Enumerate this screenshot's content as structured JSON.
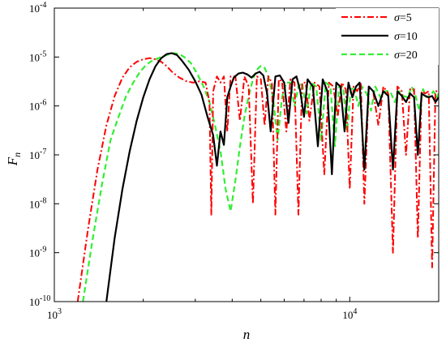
{
  "chart_data": {
    "type": "line",
    "xlabel": "n",
    "ylabel": "F",
    "ylabel_sub": "n",
    "x_scale": "log",
    "y_scale": "log",
    "xlim": [
      1000,
      20000
    ],
    "ylim": [
      1e-10,
      0.0001
    ],
    "x_ticks": [
      {
        "value": 1000,
        "base": "10",
        "exp": "3"
      },
      {
        "value": 10000,
        "base": "10",
        "exp": "4"
      }
    ],
    "y_ticks": [
      {
        "value": 1e-10,
        "base": "10",
        "exp": "-10"
      },
      {
        "value": 1e-09,
        "base": "10",
        "exp": "-9"
      },
      {
        "value": 1e-08,
        "base": "10",
        "exp": "-8"
      },
      {
        "value": 1e-07,
        "base": "10",
        "exp": "-7"
      },
      {
        "value": 1e-06,
        "base": "10",
        "exp": "-6"
      },
      {
        "value": 1e-05,
        "base": "10",
        "exp": "-5"
      },
      {
        "value": 0.0001,
        "base": "10",
        "exp": "-4"
      }
    ],
    "grid": false,
    "legend_position": "top-right",
    "series": [
      {
        "name_symbol": "σ",
        "name_value": "=5",
        "color": "#ff0000",
        "dash": "dashdot",
        "x": [
          1200,
          1300,
          1400,
          1500,
          1600,
          1700,
          1800,
          1900,
          2000,
          2100,
          2200,
          2300,
          2400,
          2500,
          2650,
          2800,
          2950,
          3100,
          3250,
          3350,
          3400,
          3450,
          3550,
          3650,
          3750,
          3850,
          3950,
          4100,
          4250,
          4400,
          4550,
          4700,
          4850,
          5000,
          5150,
          5300,
          5450,
          5600,
          5750,
          5900,
          6100,
          6300,
          6500,
          6700,
          6900,
          7100,
          7300,
          7600,
          7900,
          8200,
          8500,
          8800,
          9100,
          9400,
          9700,
          10000,
          10300,
          10600,
          10900,
          11200,
          11600,
          12000,
          12500,
          13000,
          13500,
          14000,
          14500,
          15000,
          15500,
          16000,
          16500,
          17000,
          17500,
          18000,
          18500,
          19000,
          19500,
          20000
        ],
        "y": [
          1e-10,
          3e-09,
          5e-08,
          4e-07,
          1.6e-06,
          3.8e-06,
          6.2e-06,
          8e-06,
          9e-06,
          9.5e-06,
          9e-06,
          8e-06,
          6.5e-06,
          5e-06,
          3.8e-06,
          3.2e-06,
          3e-06,
          3.2e-06,
          3e-06,
          1.2e-06,
          6e-09,
          2e-06,
          4e-06,
          3e-06,
          4e-06,
          3e-07,
          4e-06,
          4e-06,
          5e-07,
          4e-06,
          2.5e-06,
          1e-08,
          4e-06,
          3.5e-06,
          4e-07,
          4e-06,
          3e-06,
          6e-09,
          3.5e-06,
          3.2e-06,
          3e-07,
          3.5e-06,
          3e-06,
          6e-09,
          3e-06,
          3e-06,
          5e-07,
          3e-06,
          2.5e-06,
          4e-08,
          3e-06,
          2.5e-06,
          6e-07,
          3e-06,
          2.2e-06,
          2e-08,
          2.5e-06,
          2e-06,
          3e-06,
          1e-08,
          2.5e-06,
          2e-06,
          4e-07,
          2.5e-06,
          1.8e-06,
          1e-09,
          2.5e-06,
          2e-06,
          1e-07,
          2.2e-06,
          2.2e-06,
          2e-09,
          2e-06,
          1.8e-06,
          2e-06,
          5e-10,
          2e-06,
          2e-06
        ]
      },
      {
        "name_symbol": "σ",
        "name_value": "=10",
        "color": "#000000",
        "dash": "solid",
        "x": [
          1500,
          1600,
          1700,
          1800,
          1900,
          2000,
          2100,
          2200,
          2300,
          2400,
          2500,
          2600,
          2700,
          2850,
          3000,
          3150,
          3300,
          3450,
          3550,
          3650,
          3750,
          3850,
          3950,
          4050,
          4200,
          4350,
          4500,
          4650,
          4800,
          4950,
          5100,
          5250,
          5400,
          5600,
          5800,
          6000,
          6200,
          6400,
          6600,
          6800,
          7000,
          7200,
          7500,
          7800,
          8100,
          8400,
          8700,
          9000,
          9300,
          9600,
          9900,
          10200,
          10500,
          10800,
          11200,
          11600,
          12000,
          12500,
          13000,
          13500,
          14000,
          14500,
          15000,
          15500,
          16000,
          16500,
          17000,
          17500,
          18000,
          18500,
          19000,
          19500,
          20000
        ],
        "y": [
          1e-10,
          2e-09,
          2e-08,
          1.2e-07,
          5e-07,
          1.5e-06,
          3.5e-06,
          6.5e-06,
          9.5e-06,
          1.15e-05,
          1.2e-05,
          1.1e-05,
          8.5e-06,
          5.5e-06,
          3.2e-06,
          1.7e-06,
          6e-07,
          2.5e-07,
          6e-08,
          3e-07,
          1.6e-07,
          1.5e-06,
          2.5e-06,
          3.8e-06,
          4.6e-06,
          4.8e-06,
          4.4e-06,
          3.8e-06,
          4.6e-06,
          5e-06,
          4.2e-06,
          1.8e-06,
          3e-07,
          4e-06,
          4.2e-06,
          3e-06,
          4.5e-07,
          3.5e-06,
          4e-06,
          2e-06,
          6e-07,
          3.5e-06,
          2.5e-06,
          1.5e-07,
          3.5e-06,
          2e-06,
          4e-08,
          3e-06,
          2.5e-06,
          3e-07,
          3e-06,
          1.5e-06,
          2.5e-06,
          3e-06,
          5e-08,
          2.5e-06,
          2e-06,
          1e-06,
          2e-06,
          1.6e-06,
          5e-08,
          2e-06,
          1.6e-06,
          1.2e-06,
          1.8e-06,
          1.5e-06,
          1e-07,
          1.8e-06,
          1.6e-06,
          1.5e-06,
          1.6e-06,
          1.2e-06,
          1.5e-06
        ]
      },
      {
        "name_symbol": "σ",
        "name_value": "=20",
        "color": "#33ee33",
        "dash": "dashed",
        "x": [
          1250,
          1350,
          1450,
          1550,
          1650,
          1750,
          1850,
          1950,
          2050,
          2150,
          2250,
          2350,
          2450,
          2550,
          2650,
          2750,
          2900,
          3050,
          3200,
          3350,
          3500,
          3650,
          3800,
          3950,
          4100,
          4250,
          4400,
          4550,
          4700,
          4850,
          5000,
          5150,
          5300,
          5500,
          5700,
          5900,
          6100,
          6300,
          6500,
          6700,
          6900,
          7150,
          7400,
          7700,
          8000,
          8300,
          8600,
          8900,
          9200,
          9500,
          9800,
          10100,
          10400,
          10700,
          11000,
          11400,
          11800,
          12200,
          12700,
          13200,
          13700,
          14200,
          14700,
          15200,
          15700,
          16200,
          16700,
          17200,
          17700,
          18200,
          18700,
          19200,
          19700,
          20000
        ],
        "y": [
          1e-10,
          2e-09,
          2.5e-08,
          2e-07,
          6e-07,
          1.6e-06,
          3e-06,
          5e-06,
          7e-06,
          8.5e-06,
          9.5e-06,
          1.05e-05,
          1.15e-05,
          1.2e-05,
          1.15e-05,
          1e-05,
          7.5e-06,
          4.5e-06,
          2.5e-06,
          1.2e-06,
          4e-07,
          1.2e-07,
          2e-08,
          7e-09,
          3e-08,
          1.5e-07,
          6e-07,
          1.6e-06,
          3.5e-06,
          5.5e-06,
          6.6e-06,
          6e-06,
          4e-06,
          1.5e-06,
          2e-07,
          1.5e-06,
          3e-06,
          3e-06,
          1e-06,
          2.5e-06,
          3e-06,
          7e-07,
          3e-06,
          2.5e-06,
          2e-07,
          3e-06,
          2.5e-06,
          1.5e-07,
          2.5e-06,
          2.5e-06,
          3e-07,
          2.5e-06,
          2e-06,
          1e-06,
          2.5e-06,
          1.8e-06,
          8e-07,
          2.5e-06,
          1.5e-06,
          2e-06,
          2e-06,
          1.2e-06,
          2e-06,
          1.6e-06,
          1.5e-06,
          2.5e-06,
          1.6e-06,
          8e-07,
          2.2e-06,
          1.5e-06,
          1.6e-06,
          2e-06,
          1.5e-06,
          1.8e-06
        ]
      }
    ]
  }
}
